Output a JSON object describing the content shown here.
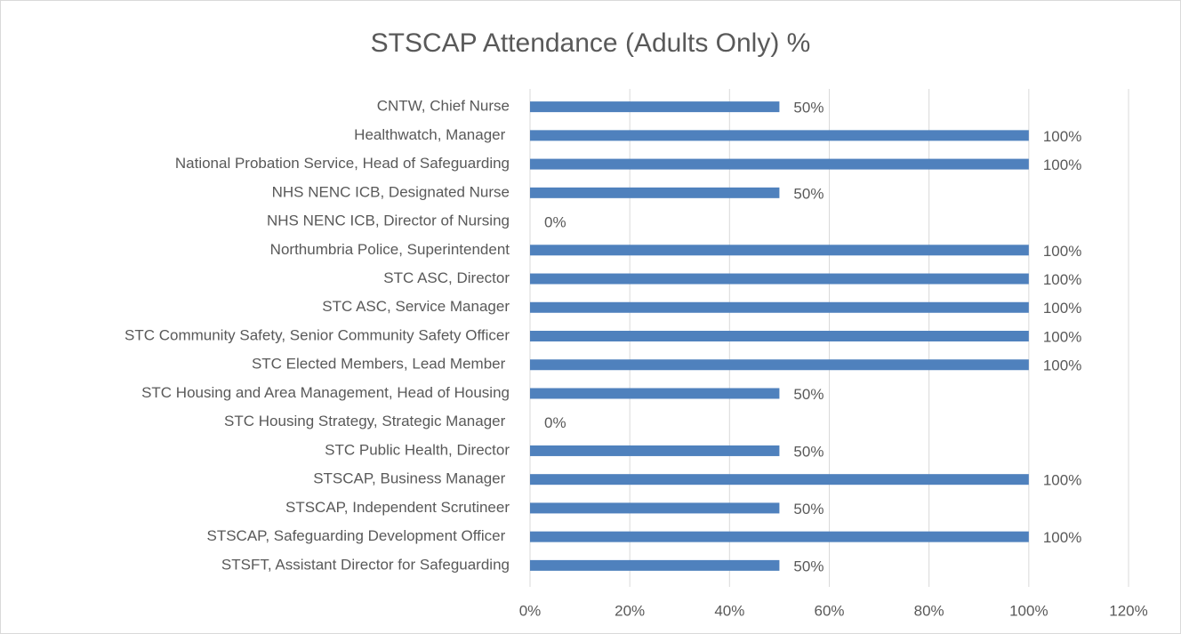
{
  "chart_data": {
    "type": "bar",
    "orientation": "horizontal",
    "title": "STSCAP Attendance (Adults Only) %",
    "categories": [
      "CNTW, Chief Nurse",
      "Healthwatch, Manager ",
      "National Probation Service, Head of Safeguarding",
      "NHS NENC ICB, Designated Nurse",
      "NHS NENC ICB, Director of Nursing",
      "Northumbria Police, Superintendent",
      "STC ASC, Director",
      "STC ASC, Service Manager",
      "STC Community Safety, Senior Community Safety Officer",
      "STC Elected Members, Lead Member ",
      "STC Housing and Area Management, Head of Housing",
      "STC Housing Strategy, Strategic Manager ",
      "STC Public Health, Director",
      "STSCAP, Business Manager ",
      "STSCAP, Independent Scrutineer",
      "STSCAP, Safeguarding Development Officer ",
      "STSFT, Assistant Director for Safeguarding"
    ],
    "values": [
      50,
      100,
      100,
      50,
      0,
      100,
      100,
      100,
      100,
      100,
      50,
      0,
      50,
      100,
      50,
      100,
      50
    ],
    "value_labels": [
      "50%",
      "100%",
      "100%",
      "50%",
      "0%",
      "100%",
      "100%",
      "100%",
      "100%",
      "100%",
      "50%",
      "0%",
      "50%",
      "100%",
      "50%",
      "100%",
      "50%"
    ],
    "color": "#4f81bd",
    "xlim": [
      0,
      120
    ],
    "xticks": [
      {
        "value": 0,
        "label": "0%"
      },
      {
        "value": 20,
        "label": "20%"
      },
      {
        "value": 40,
        "label": "40%"
      },
      {
        "value": 60,
        "label": "60%"
      },
      {
        "value": 80,
        "label": "80%"
      },
      {
        "value": 100,
        "label": "100%"
      },
      {
        "value": 120,
        "label": "120%"
      }
    ],
    "grid": true
  }
}
